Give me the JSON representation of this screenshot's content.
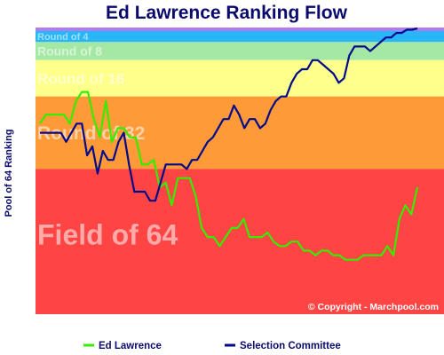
{
  "chart_data": {
    "type": "line",
    "title": "Ed Lawrence Ranking Flow",
    "ylabel": "Pool of 64 Ranking",
    "xlabel": "",
    "yaxis_inverted": true,
    "zones": [
      {
        "label": "Round of 4",
        "from": 1,
        "to": 4,
        "color": "#29b6f6"
      },
      {
        "label": "Round of 8",
        "from": 4,
        "to": 8,
        "color": "#a5e8a5"
      },
      {
        "label": "Round of 16",
        "from": 8,
        "to": 16,
        "color": "#ffff8c"
      },
      {
        "label": "Round of 32",
        "from": 16,
        "to": 32,
        "color": "#ff9a38"
      },
      {
        "label": "Field of 64",
        "from": 32,
        "to": 64,
        "color": "#ff4444"
      }
    ],
    "series": [
      {
        "name": "Ed Lawrence",
        "color": "#33ee00",
        "values": [
          22,
          20,
          20,
          20,
          20,
          22,
          17,
          15,
          15,
          21,
          25,
          17,
          26,
          23,
          23,
          25,
          25,
          31,
          31,
          30,
          36,
          35,
          40,
          34,
          34,
          34,
          38,
          45,
          47,
          47,
          49,
          47,
          45,
          45,
          43,
          47,
          47,
          47,
          46,
          48,
          49,
          49,
          48,
          48,
          50,
          50,
          51,
          50,
          50,
          51,
          51,
          52,
          52,
          52,
          51,
          51,
          51,
          51,
          49,
          51,
          43,
          40,
          42,
          36
        ]
      },
      {
        "name": "Selection Committee",
        "color": "#000a8c",
        "values": [
          24,
          24,
          24,
          24,
          24,
          26,
          24,
          22,
          22,
          29,
          27,
          33,
          28,
          30,
          30,
          26,
          24,
          31,
          37,
          37,
          37,
          39,
          39,
          35,
          31,
          31,
          31,
          31,
          32,
          30,
          30,
          28,
          26,
          25,
          23,
          21,
          21,
          18,
          20,
          23,
          21,
          21,
          23,
          22,
          19,
          17,
          16,
          16,
          13,
          11,
          10,
          10,
          8,
          8,
          9,
          10,
          11,
          13,
          12,
          7,
          5,
          5,
          5,
          6,
          5,
          4,
          3,
          3,
          2,
          2,
          1.3,
          1.3,
          1
        ]
      }
    ],
    "legend_position": "bottom",
    "annotation": "© Copyright - Marchpool.com"
  }
}
